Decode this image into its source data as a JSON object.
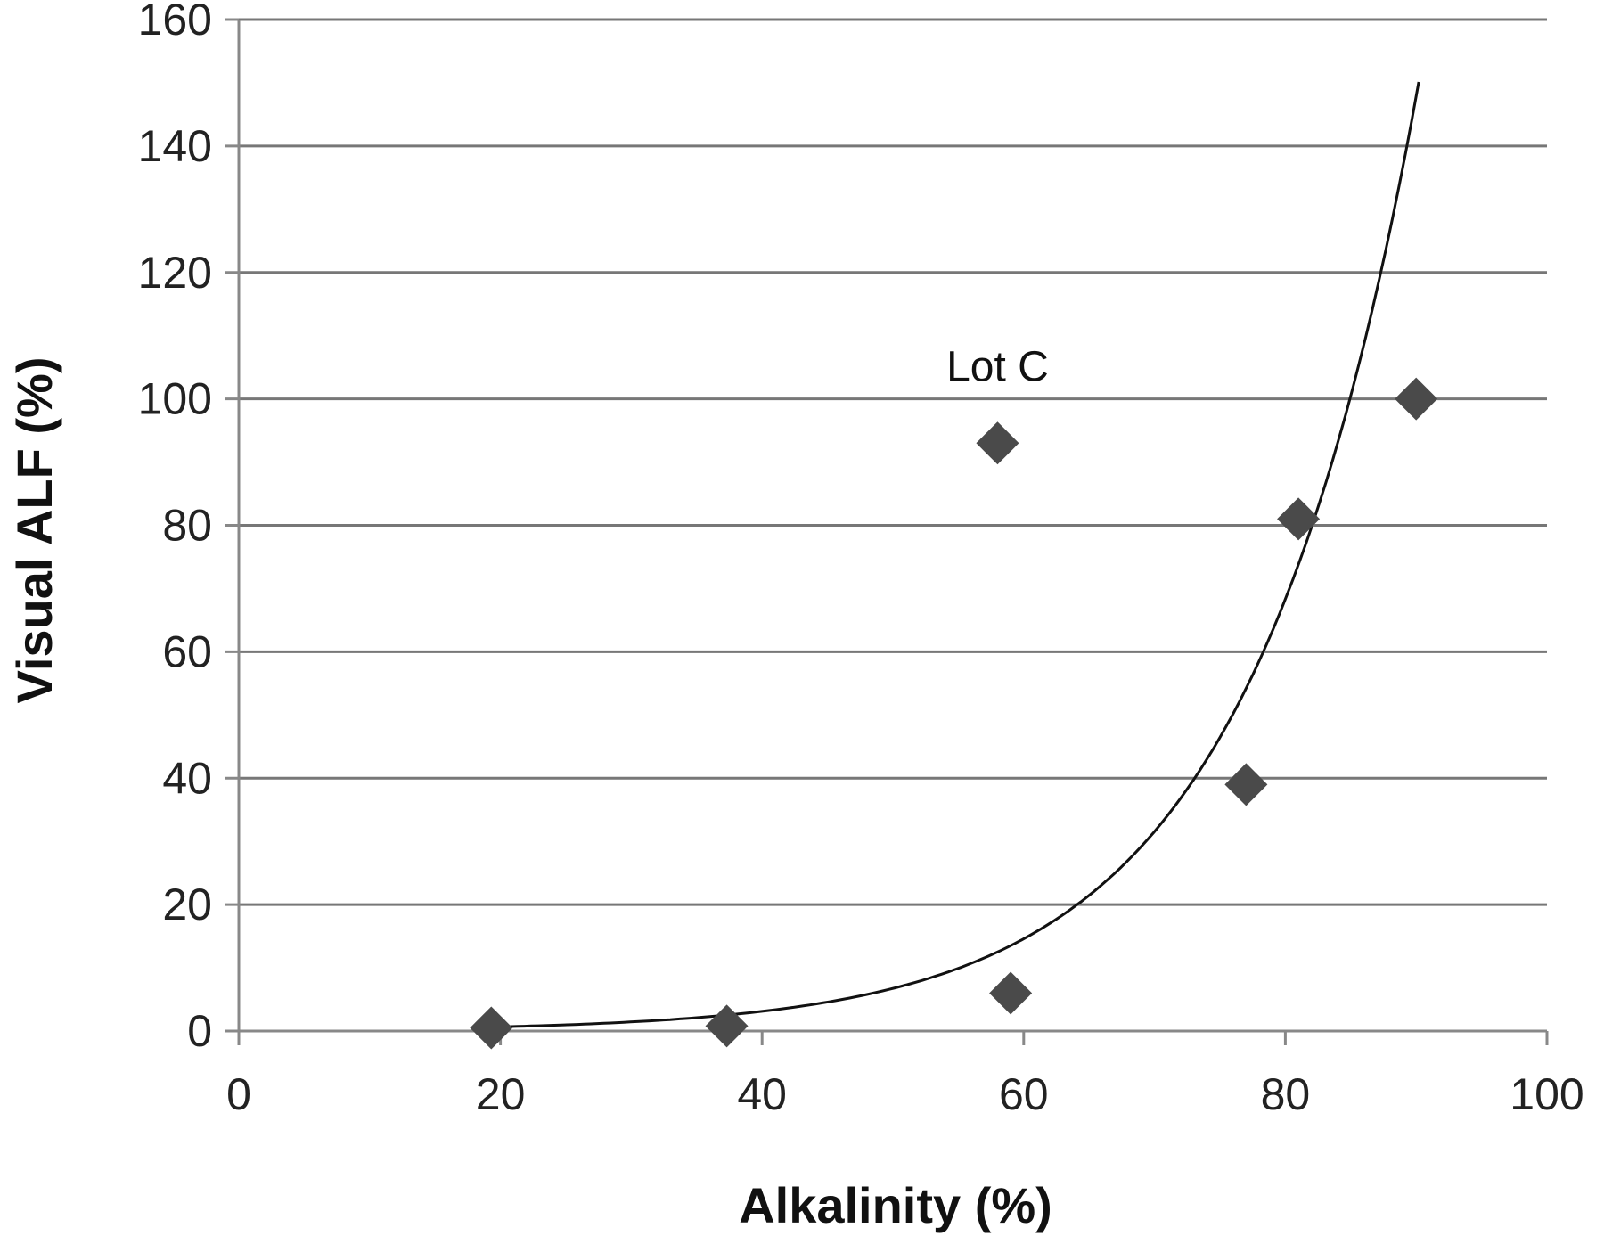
{
  "chart_data": {
    "type": "scatter",
    "xlabel": "Alkalinity (%)",
    "ylabel": "Visual ALF (%)",
    "xlim": [
      0,
      100
    ],
    "ylim": [
      0,
      160
    ],
    "x_ticks": [
      "0",
      "20",
      "40",
      "60",
      "80",
      "100"
    ],
    "y_ticks": [
      "0",
      "20",
      "40",
      "60",
      "80",
      "100",
      "120",
      "140",
      "160"
    ],
    "grid": "horizontal",
    "legend": "none",
    "marker": "diamond",
    "marker_color": "#4a4a4a",
    "series": [
      {
        "points": [
          {
            "x": 19.3,
            "y": 0.5
          },
          {
            "x": 37.3,
            "y": 0.8
          },
          {
            "x": 58.0,
            "y": 93
          },
          {
            "x": 59.0,
            "y": 6
          },
          {
            "x": 77.0,
            "y": 39
          },
          {
            "x": 81.0,
            "y": 81
          },
          {
            "x": 90.0,
            "y": 100
          }
        ]
      }
    ],
    "trendline": {
      "type": "exponential",
      "a": 0.142,
      "b": 0.0772,
      "x_range": [
        19.3,
        90.2
      ],
      "color": "#111111"
    },
    "annotations": [
      {
        "text": "Lot C",
        "x": 58.0,
        "y": 93
      }
    ]
  }
}
